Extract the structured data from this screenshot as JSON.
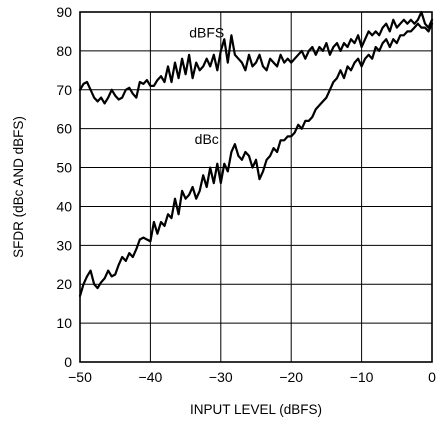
{
  "chart_data": {
    "type": "line",
    "xlabel": "INPUT LEVEL (dBFS)",
    "ylabel": "SFDR (dBc AND dBFS)",
    "xlim": [
      -50,
      0
    ],
    "ylim": [
      0,
      90
    ],
    "xticks": [
      -50,
      -40,
      -30,
      -20,
      -10,
      0
    ],
    "yticks": [
      0,
      10,
      20,
      30,
      40,
      50,
      60,
      70,
      80,
      90
    ],
    "xtick_labels": [
      "−50",
      "−40",
      "−30",
      "−20",
      "−10",
      "0"
    ],
    "ytick_labels": [
      "0",
      "10",
      "20",
      "30",
      "40",
      "50",
      "60",
      "70",
      "80",
      "90"
    ],
    "grid": true,
    "series": [
      {
        "name": "dBFS",
        "x": [
          -50,
          -49.5,
          -49,
          -48.5,
          -48,
          -47.5,
          -47,
          -46.5,
          -46,
          -45.5,
          -45,
          -44.5,
          -44,
          -43.5,
          -43,
          -42.5,
          -42,
          -41.5,
          -41,
          -40.5,
          -40,
          -39.5,
          -39,
          -38.5,
          -38,
          -37.5,
          -37,
          -36.5,
          -36,
          -35.5,
          -35,
          -34.5,
          -34,
          -33.5,
          -33,
          -32.5,
          -32,
          -31.5,
          -31,
          -30.5,
          -30,
          -29.5,
          -29,
          -28.5,
          -28,
          -27.5,
          -27,
          -26.5,
          -26,
          -25.5,
          -25,
          -24.5,
          -24,
          -23.5,
          -23,
          -22.5,
          -22,
          -21.5,
          -21,
          -20.5,
          -20,
          -19.5,
          -19,
          -18.5,
          -18,
          -17.5,
          -17,
          -16.5,
          -16,
          -15.5,
          -15,
          -14.5,
          -14,
          -13.5,
          -13,
          -12.5,
          -12,
          -11.5,
          -11,
          -10.5,
          -10,
          -9.5,
          -9,
          -8.5,
          -8,
          -7.5,
          -7,
          -6.5,
          -6,
          -5.5,
          -5,
          -4.5,
          -4,
          -3.5,
          -3,
          -2.5,
          -2,
          -1.5,
          -1,
          -0.5,
          0
        ],
        "y": [
          70,
          71.5,
          72,
          70,
          68,
          67,
          68,
          66.5,
          68,
          70,
          68.5,
          67.5,
          68,
          70,
          70.5,
          69,
          68,
          72,
          71.5,
          72.5,
          71,
          71,
          72.5,
          73.5,
          72,
          76,
          72,
          77,
          73,
          78,
          74,
          79,
          73,
          77,
          75,
          76,
          78,
          76,
          79,
          75,
          80,
          83,
          77,
          84,
          79,
          78,
          77,
          75,
          79,
          76,
          77,
          79,
          76,
          75,
          78,
          77,
          76,
          79,
          77,
          78,
          77,
          78,
          79,
          80,
          78,
          80,
          81,
          79,
          81,
          80,
          82,
          79,
          81,
          82,
          80,
          82,
          81,
          83,
          82,
          84,
          81,
          83,
          85,
          84,
          85,
          84,
          86,
          87,
          85,
          88,
          86,
          87,
          88,
          87,
          88,
          87,
          88,
          90,
          87,
          86,
          88
        ]
      },
      {
        "name": "dBc",
        "x": [
          -50,
          -49.5,
          -49,
          -48.5,
          -48,
          -47.5,
          -47,
          -46.5,
          -46,
          -45.5,
          -45,
          -44.5,
          -44,
          -43.5,
          -43,
          -42.5,
          -42,
          -41.5,
          -41,
          -40.5,
          -40,
          -39.5,
          -39,
          -38.5,
          -38,
          -37.5,
          -37,
          -36.5,
          -36,
          -35.5,
          -35,
          -34.5,
          -34,
          -33.5,
          -33,
          -32.5,
          -32,
          -31.5,
          -31,
          -30.5,
          -30,
          -29.5,
          -29,
          -28.5,
          -28,
          -27.5,
          -27,
          -26.5,
          -26,
          -25.5,
          -25,
          -24.5,
          -24,
          -23.5,
          -23,
          -22.5,
          -22,
          -21.5,
          -21,
          -20.5,
          -20,
          -19.5,
          -19,
          -18.5,
          -18,
          -17.5,
          -17,
          -16.5,
          -16,
          -15.5,
          -15,
          -14.5,
          -14,
          -13.5,
          -13,
          -12.5,
          -12,
          -11.5,
          -11,
          -10.5,
          -10,
          -9.5,
          -9,
          -8.5,
          -8,
          -7.5,
          -7,
          -6.5,
          -6,
          -5.5,
          -5,
          -4.5,
          -4,
          -3.5,
          -3,
          -2.5,
          -2,
          -1.5,
          -1,
          -0.5,
          0
        ],
        "y": [
          17,
          20,
          22,
          23.5,
          20,
          19,
          20.5,
          21.5,
          23.5,
          22,
          22.5,
          25,
          27,
          26,
          28,
          27,
          29,
          31.5,
          32,
          31.5,
          31,
          36,
          33,
          36,
          35,
          38,
          37,
          42,
          38,
          44,
          42,
          43,
          45,
          42,
          44,
          48,
          45,
          50,
          46,
          51,
          46,
          51,
          49,
          54,
          56,
          53,
          52,
          54,
          53,
          50,
          52,
          47,
          49,
          52,
          53,
          55,
          54,
          57,
          57,
          58,
          58,
          59,
          61,
          60,
          62,
          62,
          63,
          65,
          66,
          67,
          68,
          70,
          72,
          73,
          75,
          73,
          76,
          75,
          77,
          78,
          76,
          78,
          79,
          78,
          81,
          80,
          82,
          83,
          81,
          83,
          82,
          84,
          84,
          85,
          85,
          86,
          87,
          86,
          86,
          85,
          87
        ]
      }
    ]
  }
}
